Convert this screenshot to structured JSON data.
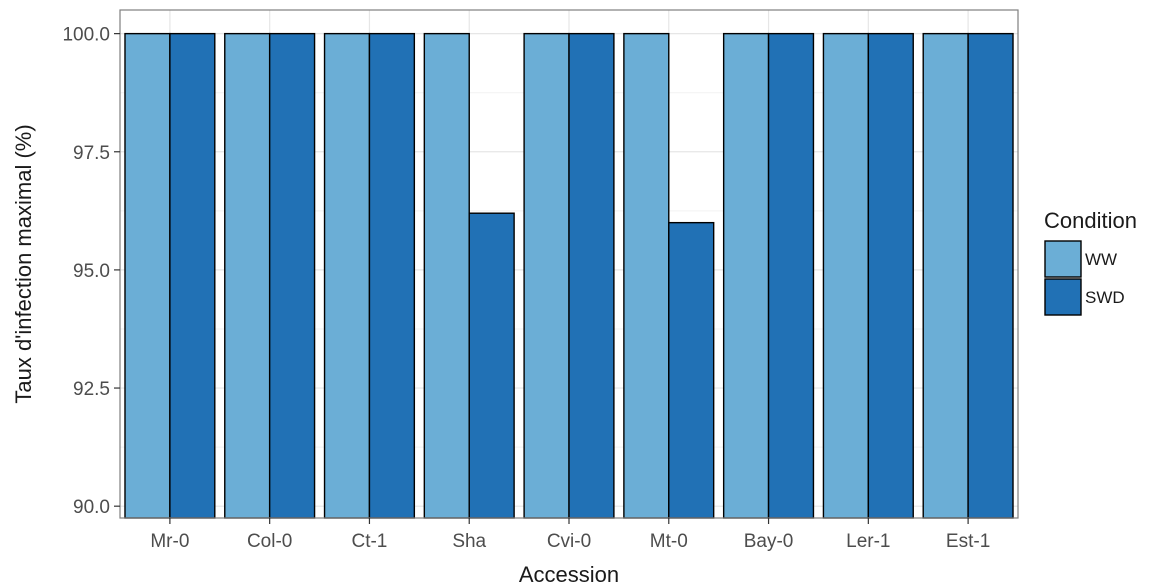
{
  "chart_data": {
    "type": "bar",
    "categories": [
      "Mr-0",
      "Col-0",
      "Ct-1",
      "Sha",
      "Cvi-0",
      "Mt-0",
      "Bay-0",
      "Ler-1",
      "Est-1"
    ],
    "series": [
      {
        "name": "WW",
        "values": [
          100,
          100,
          100,
          100,
          100,
          100,
          100,
          100,
          100
        ],
        "color": "#6baed6"
      },
      {
        "name": "SWD",
        "values": [
          100,
          100,
          100,
          96.2,
          100,
          96.0,
          100,
          100,
          100
        ],
        "color": "#2171b5"
      }
    ],
    "title": "",
    "xlabel": "Accession",
    "ylabel": "Taux d'infection maximal (%)",
    "ylim": [
      89.75,
      100.5
    ],
    "yticks": [
      "90.0",
      "92.5",
      "95.0",
      "97.5",
      "100.0"
    ],
    "grid": true,
    "legend": {
      "title": "Condition",
      "position": "right"
    }
  }
}
